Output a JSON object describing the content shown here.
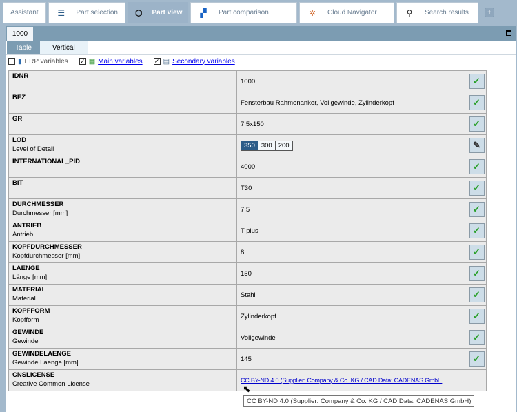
{
  "tabs": [
    {
      "label": "Assistant",
      "icon": "none",
      "active": false
    },
    {
      "label": "Part selection",
      "icon": "database-icon",
      "active": false
    },
    {
      "label": "Part view",
      "icon": "cubes-icon",
      "active": true
    },
    {
      "label": "Part comparison",
      "icon": "compare-icon",
      "active": false
    },
    {
      "label": "Cloud Navigator",
      "icon": "network-icon",
      "active": false
    },
    {
      "label": "Search results",
      "icon": "search-icon",
      "active": false
    }
  ],
  "add_tab": "+",
  "document_tab": "1000",
  "view_tabs": [
    "Table",
    "Vertical"
  ],
  "filters": {
    "erp": "ERP variables",
    "erp_checked": false,
    "main": "Main variables",
    "main_checked": true,
    "secondary": "Secondary variables",
    "secondary_checked": true
  },
  "rows": [
    {
      "name": "IDNR",
      "desc": "",
      "value": "1000",
      "action": "check"
    },
    {
      "name": "BEZ",
      "desc": "",
      "value": "Fensterbau Rahmenanker, Vollgewinde, Zylinderkopf",
      "action": "check"
    },
    {
      "name": "GR",
      "desc": "",
      "value": "7.5x150",
      "action": "check"
    },
    {
      "name": "LOD",
      "desc": "Level of Detail",
      "value": "",
      "action": "edit"
    },
    {
      "name": "INTERNATIONAL_PID",
      "desc": "",
      "value": "4000",
      "action": "check"
    },
    {
      "name": "BIT",
      "desc": "",
      "value": "T30",
      "action": "check"
    },
    {
      "name": "DURCHMESSER",
      "desc": "Durchmesser [mm]",
      "value": "7.5",
      "action": "check"
    },
    {
      "name": "ANTRIEB",
      "desc": "Antrieb",
      "value": "T plus",
      "action": "check"
    },
    {
      "name": "KOPFDURCHMESSER",
      "desc": "Kopfdurchmesser [mm]",
      "value": "8",
      "action": "check"
    },
    {
      "name": "LAENGE",
      "desc": "Länge [mm]",
      "value": "150",
      "action": "check"
    },
    {
      "name": "MATERIAL",
      "desc": "Material",
      "value": "Stahl",
      "action": "check"
    },
    {
      "name": "KOPFFORM",
      "desc": "Kopfform",
      "value": "Zylinderkopf",
      "action": "check"
    },
    {
      "name": "GEWINDE",
      "desc": "Gewinde",
      "value": "Vollgewinde",
      "action": "check"
    },
    {
      "name": "GEWINDELAENGE",
      "desc": "Gewinde Laenge [mm]",
      "value": "145",
      "action": "check"
    },
    {
      "name": "CNSLICENSE",
      "desc": "Creative Common License",
      "value": "CC BY-ND 4.0 (Supplier: Company & Co. KG / CAD Data: CADENAS Gmbl..",
      "action": "none"
    }
  ],
  "lod_options": [
    "350",
    "300",
    "200"
  ],
  "lod_selected": "350",
  "tooltip": "CC BY-ND 4.0 (Supplier: Company & Co. KG / CAD Data: CADENAS GmbH)"
}
